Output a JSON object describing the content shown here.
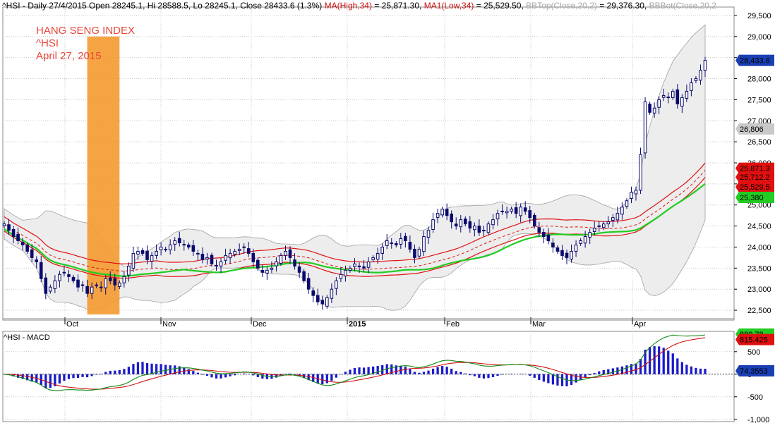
{
  "header": {
    "parts": [
      {
        "text": "^HSI - Daily 27/4/2015 Open 28245.1, Hi 28588.5, Lo 28245.1, Close 28433.6 (1.3%) ",
        "color": "#000000"
      },
      {
        "text": "MA(High,34)",
        "color": "#d01010"
      },
      {
        "text": " = 25,871.30, ",
        "color": "#000000"
      },
      {
        "text": "MA1(Low,34)",
        "color": "#d01010"
      },
      {
        "text": " = 25,529.50, ",
        "color": "#000000"
      },
      {
        "text": "BBTop(Close,20,2)",
        "color": "#a8a8a8"
      },
      {
        "text": " = 29,376.30, ",
        "color": "#000000"
      },
      {
        "text": "BBBot(Close,20,2",
        "color": "#a8a8a8"
      }
    ]
  },
  "overlay": {
    "title": "HANG SENG INDEX",
    "ticker": "^HSI",
    "date": "April 27, 2015"
  },
  "macd_label": "^HSI - MACD",
  "colors": {
    "up_fill": "#ffffff",
    "candle": "#0a0a6e",
    "ma_high": "#e01010",
    "ma_low": "#e01010",
    "ma_green": "#22cc22",
    "bb_fill": "#ededed",
    "bb_line": "#a0a0a0",
    "highlight": "#f59a2f",
    "macd_hist": "#1a1acc",
    "macd_line": "#118811",
    "signal_line": "#cc1111",
    "grid": "#c8c8c8"
  },
  "chart_data": [
    {
      "type": "candlestick",
      "title": "^HSI - Daily 27/4/2015",
      "x_labels": [
        "Oct",
        "Nov",
        "Dec",
        "2015",
        "Feb",
        "Mar",
        "Apr"
      ],
      "y_ticks": [
        22500,
        23000,
        23500,
        24000,
        24500,
        25000,
        25500,
        26000,
        26500,
        27000,
        27500,
        28000,
        28500,
        29000,
        29500
      ],
      "ylim": [
        22300,
        29700
      ],
      "grid": true,
      "value_tags": [
        {
          "label": "28,433.6",
          "value": 28433.6,
          "bg": "#1a3fb4",
          "fg": "#ffffff"
        },
        {
          "label": "26,806",
          "value": 26806,
          "bg": "#c9c9c9",
          "fg": "#000000"
        },
        {
          "label": "25,871.3",
          "value": 25871.3,
          "bg": "#e01010",
          "fg": "#000000"
        },
        {
          "label": "25,712.2",
          "value": 25712.2,
          "bg": "#e01010",
          "fg": "#000000"
        },
        {
          "label": "25,529.5",
          "value": 25529.5,
          "bg": "#e01010",
          "fg": "#000000"
        },
        {
          "label": "25,380",
          "value": 25380,
          "bg": "#22cc22",
          "fg": "#000000"
        }
      ],
      "latest": {
        "date": "27/4/2015",
        "open": 28245.1,
        "high": 28588.5,
        "low": 28245.1,
        "close": 28433.6,
        "change_pct": 1.3
      },
      "closes": [
        24550,
        24400,
        24250,
        24150,
        24050,
        23900,
        23750,
        23650,
        23250,
        22900,
        23050,
        23200,
        23350,
        23400,
        23300,
        23200,
        23050,
        23100,
        22900,
        23050,
        23100,
        23050,
        23250,
        23200,
        23100,
        23150,
        23300,
        23550,
        23850,
        23900,
        23850,
        23700,
        23800,
        23900,
        24000,
        23950,
        24050,
        24150,
        24100,
        24050,
        24000,
        23900,
        23850,
        23700,
        23750,
        23600,
        23550,
        23650,
        23800,
        23850,
        23900,
        23950,
        24000,
        23850,
        23650,
        23500,
        23400,
        23450,
        23500,
        23650,
        23800,
        23900,
        23750,
        23550,
        23400,
        23200,
        23000,
        22850,
        22700,
        22650,
        22800,
        23000,
        23200,
        23350,
        23450,
        23500,
        23600,
        23550,
        23500,
        23650,
        23750,
        23850,
        24000,
        24150,
        24100,
        24050,
        24200,
        24150,
        23950,
        23750,
        23950,
        24250,
        24400,
        24650,
        24800,
        24900,
        24750,
        24600,
        24500,
        24650,
        24550,
        24450,
        24500,
        24350,
        24400,
        24550,
        24650,
        24800,
        24850,
        24850,
        24900,
        24800,
        24950,
        24850,
        24700,
        24500,
        24350,
        24250,
        24150,
        24000,
        23900,
        23800,
        23750,
        23900,
        24050,
        24150,
        24250,
        24350,
        24450,
        24500,
        24550,
        24600,
        24700,
        24800,
        24950,
        25100,
        25300,
        25350,
        26200,
        27450,
        27200,
        27300,
        27500,
        27600,
        27550,
        27700,
        27400,
        27550,
        27700,
        27900,
        28000,
        28200,
        28433.6
      ],
      "ma_high_34_last": 25871.3,
      "ma_low_34_last": 25529.5,
      "bb_top_20_2_last": 29376.3
    },
    {
      "type": "bar",
      "title": "^HSI - MACD",
      "y_ticks": [
        -1000,
        -500,
        0,
        500
      ],
      "ylim": [
        -1050,
        950
      ],
      "value_tags": [
        {
          "label": "889.78",
          "value": 889.78,
          "bg": "#22cc22",
          "fg": "#000000"
        },
        {
          "label": "815.425",
          "value": 815.425,
          "bg": "#e01010",
          "fg": "#000000"
        },
        {
          "label": "74.3553",
          "value": 74.3553,
          "bg": "#1a3fb4",
          "fg": "#ffffff"
        }
      ]
    }
  ]
}
